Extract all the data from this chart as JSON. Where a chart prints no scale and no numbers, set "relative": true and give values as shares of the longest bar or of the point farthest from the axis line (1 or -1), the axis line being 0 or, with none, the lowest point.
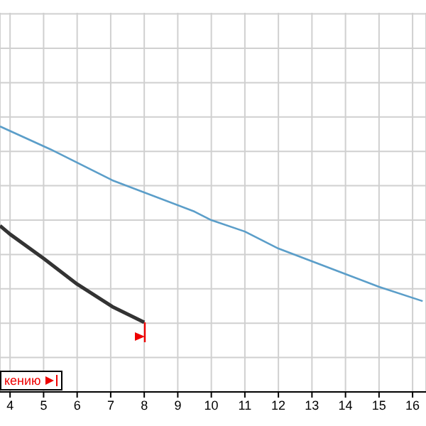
{
  "chart_data": {
    "type": "line",
    "relative": true,
    "xlim": [
      3.7,
      16.4
    ],
    "xticks": [
      4,
      5,
      6,
      7,
      8,
      9,
      10,
      11,
      12,
      13,
      14,
      15,
      16
    ],
    "grid": true,
    "marker": "none",
    "annotations": [
      "кению"
    ],
    "series": [
      {
        "color": "#5b9ec9",
        "x": [
          3.7,
          5.2,
          7.05,
          9.5,
          10,
          11,
          12,
          13,
          14,
          15,
          16.3
        ],
        "values": [
          1,
          0.914,
          0.797,
          0.679,
          0.647,
          0.604,
          0.54,
          0.492,
          0.444,
          0.396,
          0.342
        ]
      },
      {
        "color": "#333333",
        "x": [
          3.7,
          4,
          5,
          6,
          7.05,
          8
        ],
        "values": [
          0.626,
          0.594,
          0.503,
          0.406,
          0.321,
          0.262
        ]
      }
    ]
  }
}
